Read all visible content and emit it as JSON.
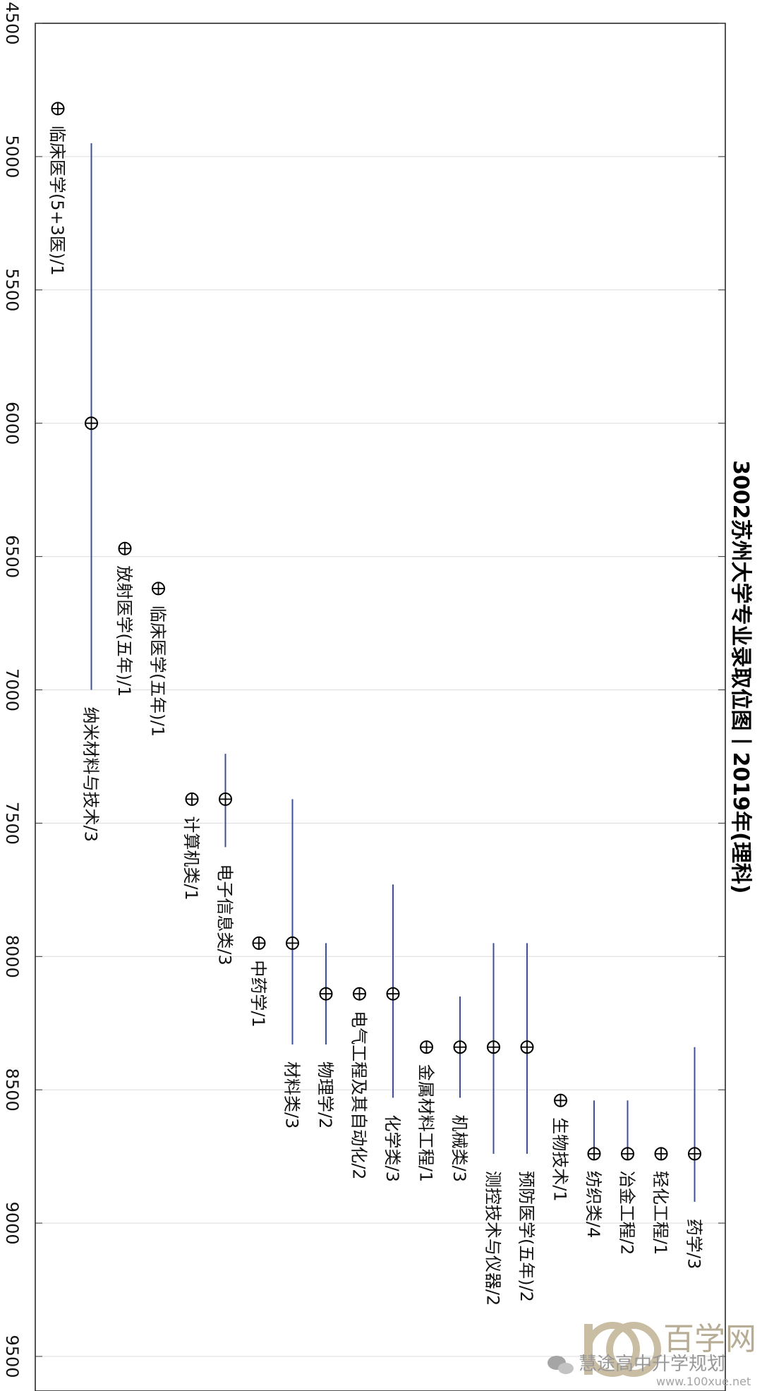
{
  "chart_data": {
    "type": "scatter",
    "title": "3002苏州大学专业录取位图丨2019年(理科)",
    "xlabel": "",
    "ylabel": "",
    "ylim": [
      4500,
      9700
    ],
    "yticks": [
      4500,
      5000,
      5500,
      6000,
      6500,
      7000,
      7500,
      8000,
      8500,
      9000,
      9500
    ],
    "grid": true,
    "points": [
      {
        "label": "临床医学(5+3医)/1",
        "value": 4820
      },
      {
        "label": "纳米材料与技术/3",
        "value": 6000,
        "range": [
          4950,
          7000
        ]
      },
      {
        "label": "放射医学(五年)/1",
        "value": 6470
      },
      {
        "label": "临床医学(五年)/1",
        "value": 6620
      },
      {
        "label": "计算机类/1",
        "value": 7410
      },
      {
        "label": "电子信息类/3",
        "value": 7410,
        "range": [
          7240,
          7590
        ]
      },
      {
        "label": "中药学/1",
        "value": 7950
      },
      {
        "label": "材料类/3",
        "value": 7950,
        "range": [
          7410,
          8330
        ]
      },
      {
        "label": "物理学/2",
        "value": 8140,
        "range": [
          7950,
          8330
        ]
      },
      {
        "label": "电气工程及其自动化/2",
        "value": 8140
      },
      {
        "label": "化学类/3",
        "value": 8140,
        "range": [
          7730,
          8530
        ]
      },
      {
        "label": "金属材料工程/1",
        "value": 8340
      },
      {
        "label": "机械类/3",
        "value": 8340,
        "range": [
          8150,
          8530
        ]
      },
      {
        "label": "测控技术与仪器/2",
        "value": 8340,
        "range": [
          7950,
          8740
        ]
      },
      {
        "label": "预防医学(五年)/2",
        "value": 8340,
        "range": [
          7950,
          8740
        ]
      },
      {
        "label": "生物技术/1",
        "value": 8540
      },
      {
        "label": "纺织类/4",
        "value": 8740,
        "range": [
          8540,
          8740
        ]
      },
      {
        "label": "冶金工程/2",
        "value": 8740,
        "range": [
          8540,
          8740
        ]
      },
      {
        "label": "轻化工程/1",
        "value": 8740
      },
      {
        "label": "药学/3",
        "value": 8740,
        "range": [
          8340,
          8920
        ]
      }
    ]
  },
  "watermark": {
    "brand": "百学网",
    "sub": "慧途高中升学规划",
    "url": "www.100xue.net"
  }
}
